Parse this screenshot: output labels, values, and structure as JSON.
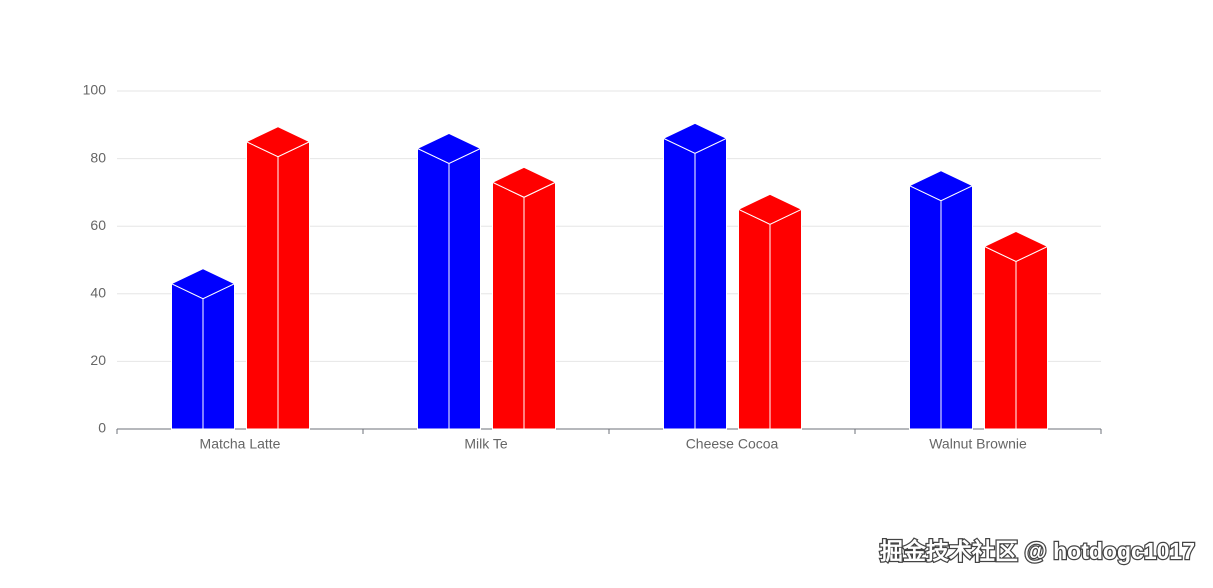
{
  "chart_data": {
    "type": "bar3d",
    "categories": [
      "Matcha Latte",
      "Milk Te",
      "Cheese Cocoa",
      "Walnut Brownie"
    ],
    "series": [
      {
        "color": "#0000ff",
        "values": [
          43,
          83,
          86,
          72
        ]
      },
      {
        "color": "#ff0000",
        "values": [
          85,
          73,
          65,
          54
        ]
      }
    ],
    "ylim": [
      0,
      100
    ],
    "yticks": [
      0,
      20,
      40,
      60,
      80,
      100
    ],
    "grid": true,
    "annotation": "掘金技术社区 @ hotdogc1017"
  }
}
